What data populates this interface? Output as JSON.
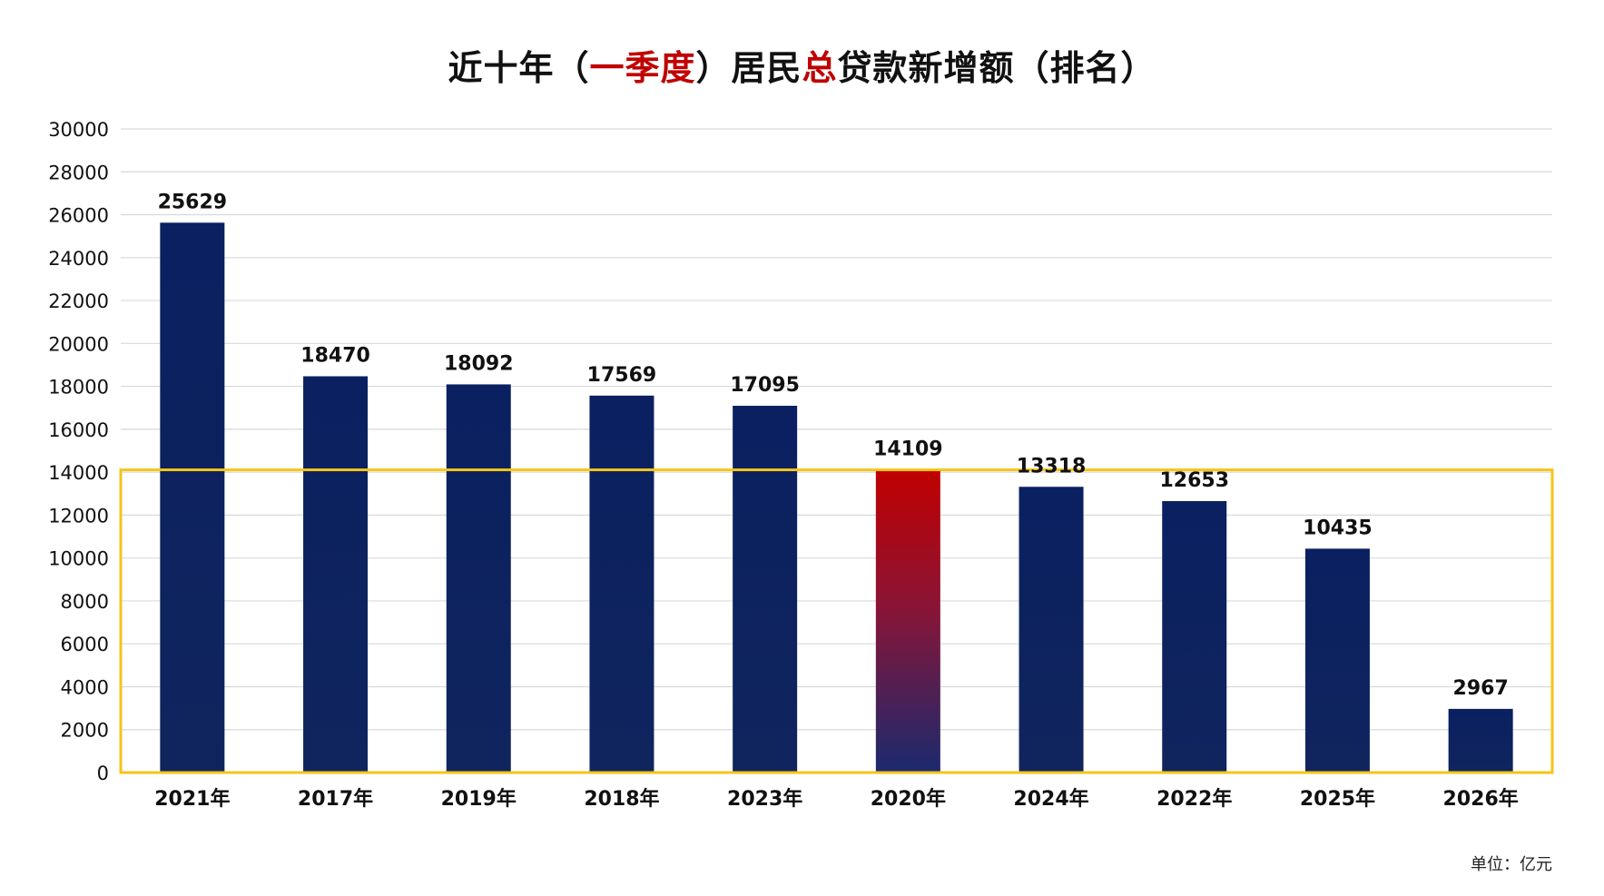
{
  "title": {
    "part1": "近十年（",
    "part2": "一季度",
    "part3": "）居民",
    "part4": "总",
    "part5": "贷款新增额（排名）"
  },
  "unit_label": "单位：亿元",
  "colors": {
    "bar": "#0b2264",
    "highlight_top": "#c00000",
    "highlight_bottom": "#1a2a6e",
    "box": "#f5c518",
    "grid": "#d9d9d9",
    "title_accent": "#c00000"
  },
  "chart_data": {
    "type": "bar",
    "title": "近十年（一季度）居民总贷款新增额（排名）",
    "categories": [
      "2021年",
      "2017年",
      "2019年",
      "2018年",
      "2023年",
      "2020年",
      "2024年",
      "2022年",
      "2025年",
      "2026年"
    ],
    "values": [
      25629,
      18470,
      18092,
      17569,
      17095,
      14109,
      13318,
      12653,
      10435,
      2967
    ],
    "value_labels": [
      "25629",
      "18470",
      "18092",
      "17569",
      "17095",
      "14109",
      "13318",
      "12653",
      "10435",
      "2967"
    ],
    "highlight_category": "2020年",
    "ylim": [
      0,
      30000
    ],
    "yticks": [
      0,
      2000,
      4000,
      6000,
      8000,
      10000,
      12000,
      14000,
      16000,
      18000,
      20000,
      22000,
      24000,
      26000,
      28000,
      30000
    ],
    "ytick_labels": [
      "0",
      "2000",
      "4000",
      "6000",
      "8000",
      "10000",
      "12000",
      "14000",
      "16000",
      "18000",
      "20000",
      "22000",
      "24000",
      "26000",
      "28000",
      "30000"
    ],
    "highlight_band": [
      0,
      14109
    ],
    "grid": true,
    "legend": "none",
    "xlabel": "",
    "ylabel": ""
  }
}
